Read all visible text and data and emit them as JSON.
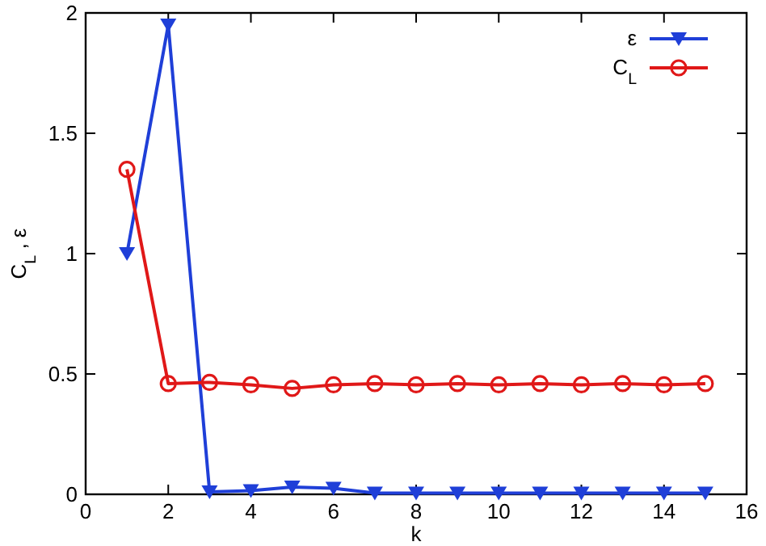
{
  "chart_data": {
    "type": "line",
    "xlabel": "k",
    "ylabel": "C$_{L}$ , ε",
    "x": [
      1,
      2,
      3,
      4,
      5,
      6,
      7,
      8,
      9,
      10,
      11,
      12,
      13,
      14,
      15
    ],
    "series": [
      {
        "name": "ε",
        "color": "#1f3fd8",
        "marker": "triangle",
        "values": [
          1.0,
          1.95,
          0.01,
          0.015,
          0.03,
          0.025,
          0.005,
          0.005,
          0.005,
          0.005,
          0.005,
          0.005,
          0.005,
          0.005,
          0.005
        ]
      },
      {
        "name": "C$_{L}$",
        "color": "#e01818",
        "marker": "circle",
        "values": [
          1.35,
          0.46,
          0.465,
          0.455,
          0.44,
          0.455,
          0.46,
          0.455,
          0.46,
          0.455,
          0.46,
          0.455,
          0.46,
          0.455,
          0.46
        ]
      }
    ],
    "xlim": [
      0,
      16
    ],
    "xticks": [
      0,
      2,
      4,
      6,
      8,
      10,
      12,
      14,
      16
    ],
    "ylim": [
      0,
      2
    ],
    "yticks": [
      0,
      0.5,
      1,
      1.5,
      2
    ],
    "legend": "top right",
    "line_style": "solid"
  }
}
